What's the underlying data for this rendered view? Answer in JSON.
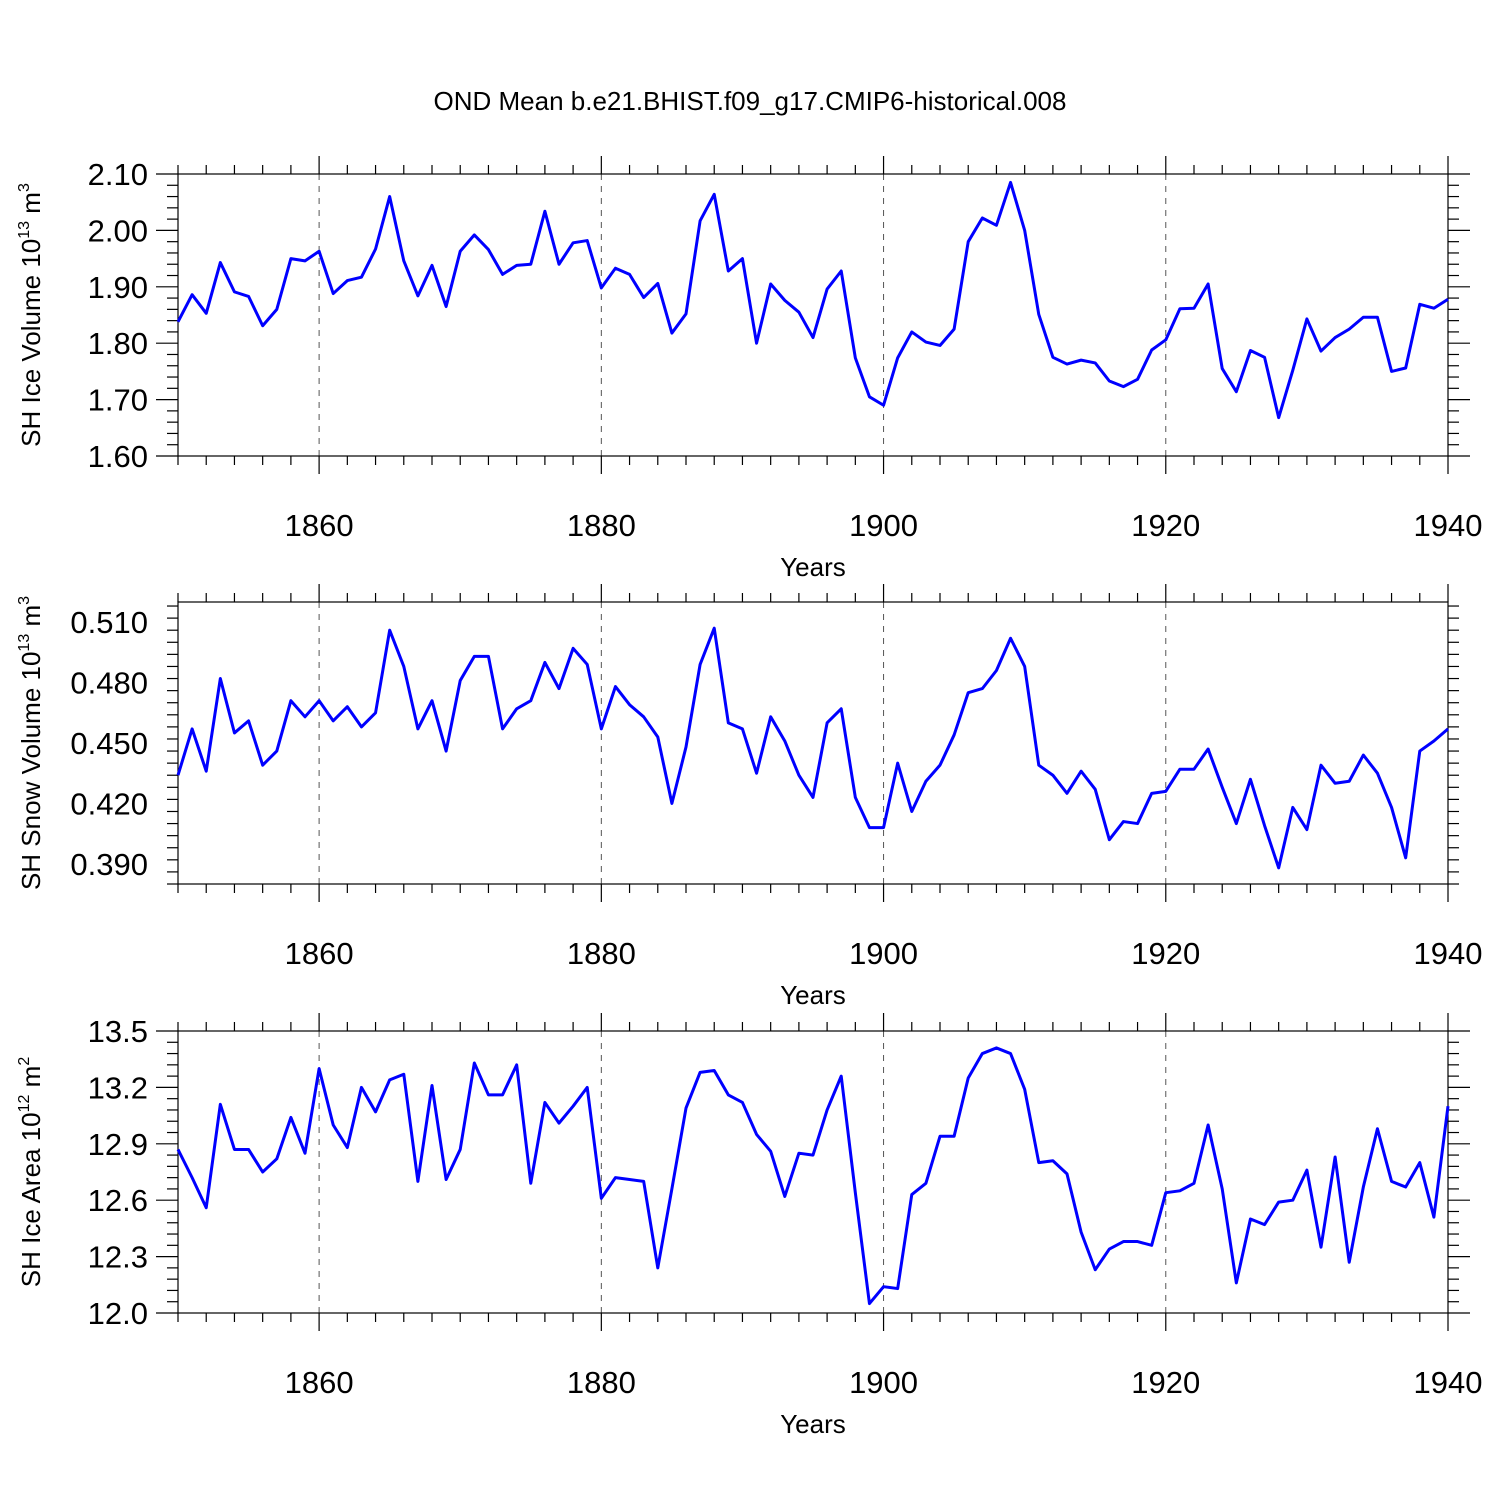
{
  "figure": {
    "title": "OND Mean b.e21.BHIST.f09_g17.CMIP6-historical.008"
  },
  "chart_data": [
    {
      "type": "line",
      "title": "OND Mean b.e21.BHIST.f09_g17.CMIP6-historical.008",
      "xlabel": "Years",
      "ylabel": "SH Ice Volume 10",
      "ylabel_exp": "13",
      "ylabel_unit": "m",
      "ylabel_unit_exp": "3",
      "xlim": [
        1850,
        1940
      ],
      "ylim": [
        1.6,
        2.1
      ],
      "xticks": [
        1860,
        1880,
        1900,
        1920,
        1940
      ],
      "xtick_labels": [
        "1860",
        "1880",
        "1900",
        "1920",
        "1940"
      ],
      "yticks": [
        1.6,
        1.7,
        1.8,
        1.9,
        2.0,
        2.1
      ],
      "ytick_labels": [
        "1.60",
        "1.70",
        "1.80",
        "1.90",
        "2.00",
        "2.10"
      ],
      "grid": "dashed vertical at major x ticks",
      "color": "#0000ff",
      "x": [
        1850,
        1851,
        1852,
        1853,
        1854,
        1855,
        1856,
        1857,
        1858,
        1859,
        1860,
        1861,
        1862,
        1863,
        1864,
        1865,
        1866,
        1867,
        1868,
        1869,
        1870,
        1871,
        1872,
        1873,
        1874,
        1875,
        1876,
        1877,
        1878,
        1879,
        1880,
        1881,
        1882,
        1883,
        1884,
        1885,
        1886,
        1887,
        1888,
        1889,
        1890,
        1891,
        1892,
        1893,
        1894,
        1895,
        1896,
        1897,
        1898,
        1899,
        1900,
        1901,
        1902,
        1903,
        1904,
        1905,
        1906,
        1907,
        1908,
        1909,
        1910,
        1911,
        1912,
        1913,
        1914,
        1915,
        1916,
        1917,
        1918,
        1919,
        1920,
        1921,
        1922,
        1923,
        1924,
        1925,
        1926,
        1927,
        1928,
        1929,
        1930,
        1931,
        1932,
        1933,
        1934,
        1935,
        1936,
        1937,
        1938,
        1939,
        1940
      ],
      "values": [
        1.838,
        1.886,
        1.853,
        1.943,
        1.891,
        1.883,
        1.831,
        1.86,
        1.95,
        1.946,
        1.963,
        1.888,
        1.911,
        1.917,
        1.967,
        2.06,
        1.946,
        1.884,
        1.938,
        1.865,
        1.963,
        1.992,
        1.966,
        1.922,
        1.938,
        1.94,
        2.034,
        1.94,
        1.978,
        1.982,
        1.898,
        1.933,
        1.922,
        1.881,
        1.906,
        1.818,
        1.852,
        2.017,
        2.064,
        1.928,
        1.95,
        1.8,
        1.905,
        1.876,
        1.855,
        1.81,
        1.896,
        1.928,
        1.774,
        1.705,
        1.69,
        1.774,
        1.82,
        1.802,
        1.796,
        1.825,
        1.98,
        2.022,
        2.009,
        2.085,
        2.0,
        1.851,
        1.775,
        1.763,
        1.77,
        1.765,
        1.733,
        1.723,
        1.736,
        1.788,
        1.806,
        1.861,
        1.862,
        1.905,
        1.755,
        1.714,
        1.787,
        1.775,
        1.668,
        1.752,
        1.843,
        1.786,
        1.81,
        1.825,
        1.846,
        1.846,
        1.75,
        1.756,
        1.869,
        1.862,
        1.878
      ]
    },
    {
      "type": "line",
      "xlabel": "Years",
      "ylabel": "SH Snow Volume 10",
      "ylabel_exp": "13",
      "ylabel_unit": "m",
      "ylabel_unit_exp": "3",
      "xlim": [
        1850,
        1940
      ],
      "ylim": [
        0.38,
        0.52
      ],
      "xticks": [
        1860,
        1880,
        1900,
        1920,
        1940
      ],
      "xtick_labels": [
        "1860",
        "1880",
        "1900",
        "1920",
        "1940"
      ],
      "yticks": [
        0.39,
        0.42,
        0.45,
        0.48,
        0.51
      ],
      "ytick_labels": [
        "0.390",
        "0.420",
        "0.450",
        "0.480",
        "0.510"
      ],
      "grid": "dashed vertical at major x ticks",
      "color": "#0000ff",
      "x": [
        1850,
        1851,
        1852,
        1853,
        1854,
        1855,
        1856,
        1857,
        1858,
        1859,
        1860,
        1861,
        1862,
        1863,
        1864,
        1865,
        1866,
        1867,
        1868,
        1869,
        1870,
        1871,
        1872,
        1873,
        1874,
        1875,
        1876,
        1877,
        1878,
        1879,
        1880,
        1881,
        1882,
        1883,
        1884,
        1885,
        1886,
        1887,
        1888,
        1889,
        1890,
        1891,
        1892,
        1893,
        1894,
        1895,
        1896,
        1897,
        1898,
        1899,
        1900,
        1901,
        1902,
        1903,
        1904,
        1905,
        1906,
        1907,
        1908,
        1909,
        1910,
        1911,
        1912,
        1913,
        1914,
        1915,
        1916,
        1917,
        1918,
        1919,
        1920,
        1921,
        1922,
        1923,
        1924,
        1925,
        1926,
        1927,
        1928,
        1929,
        1930,
        1931,
        1932,
        1933,
        1934,
        1935,
        1936,
        1937,
        1938,
        1939,
        1940
      ],
      "values": [
        0.434,
        0.457,
        0.436,
        0.482,
        0.455,
        0.461,
        0.439,
        0.446,
        0.471,
        0.463,
        0.471,
        0.461,
        0.468,
        0.458,
        0.465,
        0.506,
        0.488,
        0.457,
        0.471,
        0.446,
        0.481,
        0.493,
        0.493,
        0.457,
        0.467,
        0.471,
        0.49,
        0.477,
        0.497,
        0.489,
        0.457,
        0.478,
        0.469,
        0.463,
        0.453,
        0.42,
        0.448,
        0.489,
        0.507,
        0.46,
        0.457,
        0.435,
        0.463,
        0.451,
        0.434,
        0.423,
        0.46,
        0.467,
        0.423,
        0.408,
        0.408,
        0.44,
        0.416,
        0.431,
        0.439,
        0.454,
        0.475,
        0.477,
        0.486,
        0.502,
        0.488,
        0.439,
        0.434,
        0.425,
        0.436,
        0.427,
        0.402,
        0.411,
        0.41,
        0.425,
        0.426,
        0.437,
        0.437,
        0.447,
        0.428,
        0.41,
        0.432,
        0.409,
        0.388,
        0.418,
        0.407,
        0.439,
        0.43,
        0.431,
        0.444,
        0.435,
        0.418,
        0.393,
        0.446,
        0.451,
        0.457
      ]
    },
    {
      "type": "line",
      "xlabel": "Years",
      "ylabel": "SH Ice Area 10",
      "ylabel_exp": "12",
      "ylabel_unit": "m",
      "ylabel_unit_exp": "2",
      "xlim": [
        1850,
        1940
      ],
      "ylim": [
        12.0,
        13.5
      ],
      "xticks": [
        1860,
        1880,
        1900,
        1920,
        1940
      ],
      "xtick_labels": [
        "1860",
        "1880",
        "1900",
        "1920",
        "1940"
      ],
      "yticks": [
        12.0,
        12.3,
        12.6,
        12.9,
        13.2,
        13.5
      ],
      "ytick_labels": [
        "12.0",
        "12.3",
        "12.6",
        "12.9",
        "13.2",
        "13.5"
      ],
      "grid": "dashed vertical at major x ticks",
      "color": "#0000ff",
      "x": [
        1850,
        1851,
        1852,
        1853,
        1854,
        1855,
        1856,
        1857,
        1858,
        1859,
        1860,
        1861,
        1862,
        1863,
        1864,
        1865,
        1866,
        1867,
        1868,
        1869,
        1870,
        1871,
        1872,
        1873,
        1874,
        1875,
        1876,
        1877,
        1878,
        1879,
        1880,
        1881,
        1882,
        1883,
        1884,
        1885,
        1886,
        1887,
        1888,
        1889,
        1890,
        1891,
        1892,
        1893,
        1894,
        1895,
        1896,
        1897,
        1898,
        1899,
        1900,
        1901,
        1902,
        1903,
        1904,
        1905,
        1906,
        1907,
        1908,
        1909,
        1910,
        1911,
        1912,
        1913,
        1914,
        1915,
        1916,
        1917,
        1918,
        1919,
        1920,
        1921,
        1922,
        1923,
        1924,
        1925,
        1926,
        1927,
        1928,
        1929,
        1930,
        1931,
        1932,
        1933,
        1934,
        1935,
        1936,
        1937,
        1938,
        1939,
        1940
      ],
      "values": [
        12.87,
        12.72,
        12.56,
        13.11,
        12.87,
        12.87,
        12.75,
        12.82,
        13.04,
        12.85,
        13.3,
        13.0,
        12.88,
        13.2,
        13.07,
        13.24,
        13.27,
        12.7,
        13.21,
        12.71,
        12.87,
        13.33,
        13.16,
        13.16,
        13.32,
        12.69,
        13.12,
        13.01,
        13.1,
        13.2,
        12.61,
        12.72,
        12.71,
        12.7,
        12.24,
        12.66,
        13.09,
        13.28,
        13.29,
        13.16,
        13.12,
        12.95,
        12.86,
        12.62,
        12.85,
        12.84,
        13.08,
        13.26,
        12.64,
        12.05,
        12.14,
        12.13,
        12.63,
        12.69,
        12.94,
        12.94,
        13.25,
        13.38,
        13.41,
        13.38,
        13.19,
        12.8,
        12.81,
        12.74,
        12.43,
        12.23,
        12.34,
        12.38,
        12.38,
        12.36,
        12.64,
        12.65,
        12.69,
        13.0,
        12.66,
        12.16,
        12.5,
        12.47,
        12.59,
        12.6,
        12.76,
        12.35,
        12.83,
        12.27,
        12.67,
        12.98,
        12.7,
        12.67,
        12.8,
        12.51,
        13.1
      ]
    }
  ]
}
